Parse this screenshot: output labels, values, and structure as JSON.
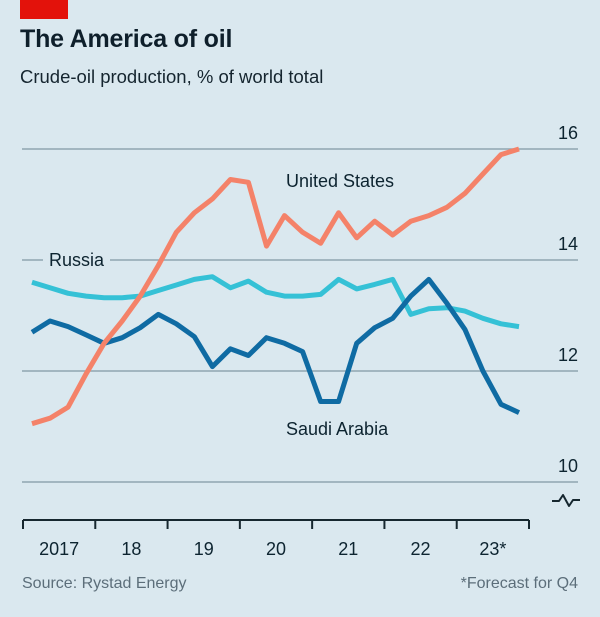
{
  "header": {
    "title": "The America of oil",
    "subtitle": "Crude-oil production, % of world total"
  },
  "footer": {
    "source": "Source: Rystad Energy",
    "footnote": "*Forecast for Q4"
  },
  "colors": {
    "background": "#DAE8EF",
    "brand_red": "#E3120B",
    "text_dark": "#0D2430",
    "muted_text": "#5C6E7A",
    "gridline": "#8FA5B1",
    "axis": "#16272F",
    "united_states": "#F48269",
    "russia": "#35C1D6",
    "saudi_arabia": "#0F6BA3"
  },
  "chart_data": {
    "type": "line",
    "title": "The America of oil",
    "subtitle": "Crude-oil production, % of world total",
    "x_unit": "quarter",
    "x_start": "2017 Q1",
    "x_end": "2023 Q4",
    "last_point_note": "2023 Q4 is a forecast",
    "xticklabels": [
      "2017",
      "18",
      "19",
      "20",
      "21",
      "22",
      "23*"
    ],
    "yticks": [
      16,
      14,
      12,
      10
    ],
    "ylim": [
      10,
      16
    ],
    "axis_break": true,
    "grid": "horizontal",
    "legend_position": "inline-labels",
    "series": [
      {
        "name": "United States",
        "color": "#F48269",
        "values": [
          11.05,
          11.15,
          11.35,
          11.95,
          12.5,
          12.9,
          13.35,
          13.9,
          14.5,
          14.85,
          15.1,
          15.45,
          15.4,
          14.25,
          14.8,
          14.5,
          14.3,
          14.85,
          14.4,
          14.7,
          14.45,
          14.7,
          14.8,
          14.95,
          15.2,
          15.55,
          15.9,
          16.0
        ]
      },
      {
        "name": "Russia",
        "color": "#35C1D6",
        "values": [
          13.6,
          13.5,
          13.4,
          13.35,
          13.32,
          13.32,
          13.35,
          13.45,
          13.55,
          13.65,
          13.7,
          13.5,
          13.62,
          13.42,
          13.35,
          13.35,
          13.38,
          13.65,
          13.48,
          13.56,
          13.65,
          13.02,
          13.12,
          13.14,
          13.08,
          12.95,
          12.85,
          12.8
        ]
      },
      {
        "name": "Saudi Arabia",
        "color": "#0F6BA3",
        "values": [
          12.7,
          12.9,
          12.8,
          12.65,
          12.5,
          12.6,
          12.78,
          13.02,
          12.85,
          12.62,
          12.08,
          12.4,
          12.28,
          12.6,
          12.5,
          12.35,
          11.45,
          11.45,
          12.5,
          12.78,
          12.95,
          13.35,
          13.65,
          13.22,
          12.75,
          12.0,
          11.4,
          11.25
        ]
      }
    ]
  }
}
